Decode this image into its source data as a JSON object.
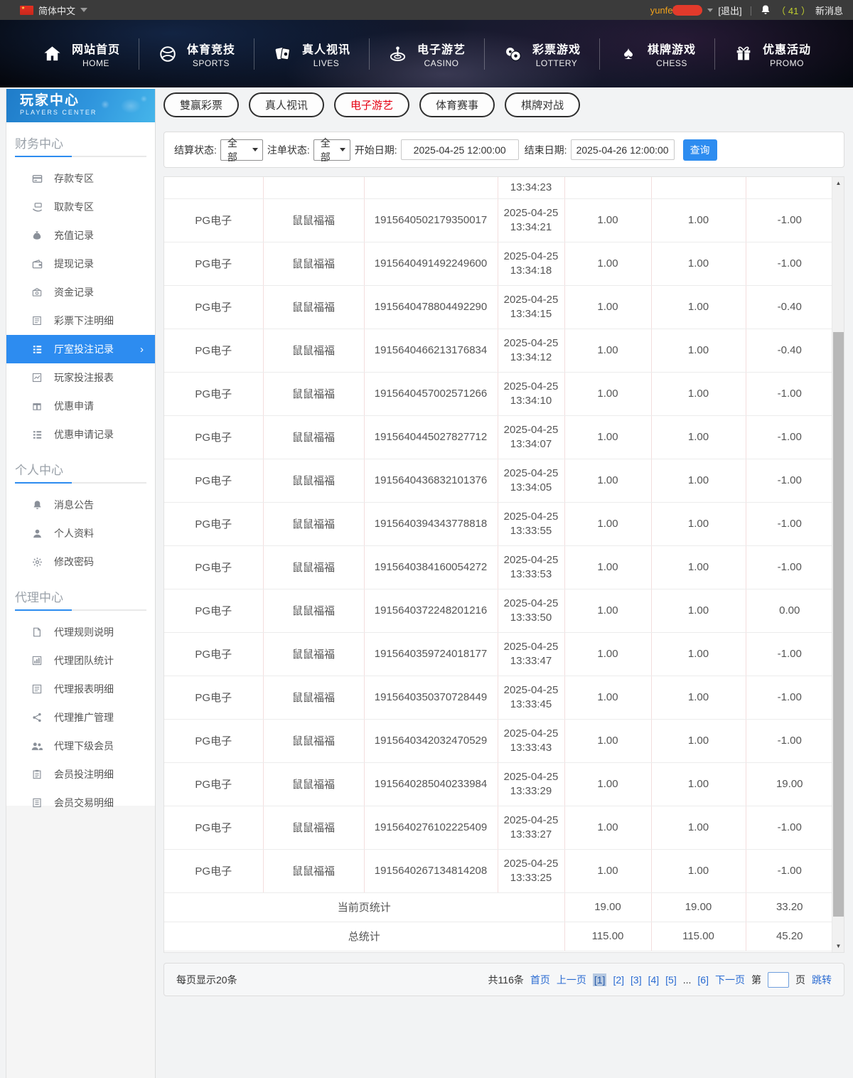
{
  "colors": {
    "accent_blue": "#2d8cf0",
    "active_tab_red": "#e60012",
    "link_blue": "#2a6bd2",
    "username_orange": "#f0a21c",
    "message_count_green": "#c0cf2e",
    "sidebar_header_blue": "#2f95dd"
  },
  "topbar": {
    "language": "简体中文",
    "username": "yunfei",
    "logout": "[退出]",
    "separator": "|",
    "message_count": "（ 41 ）",
    "message_label": "新消息"
  },
  "nav": {
    "items": [
      {
        "zh": "网站首页",
        "en": "HOME",
        "icon": "home-icon"
      },
      {
        "zh": "体育竞技",
        "en": "SPORTS",
        "icon": "sports-ball-icon"
      },
      {
        "zh": "真人视讯",
        "en": "LIVES",
        "icon": "cards-icon"
      },
      {
        "zh": "电子游艺",
        "en": "CASINO",
        "icon": "roulette-icon"
      },
      {
        "zh": "彩票游戏",
        "en": "LOTTERY",
        "icon": "lottery-balls-icon"
      },
      {
        "zh": "棋牌游戏",
        "en": "CHESS",
        "icon": "spade-icon"
      },
      {
        "zh": "优惠活动",
        "en": "PROMO",
        "icon": "gift-icon"
      }
    ]
  },
  "sidebar": {
    "header": {
      "title": "玩家中心",
      "subtitle": "PLAYERS CENTER"
    },
    "sections": [
      {
        "title": "财务中心",
        "items": [
          {
            "label": "存款专区",
            "icon": "deposit-card-icon"
          },
          {
            "label": "取款专区",
            "icon": "withdraw-hand-icon"
          },
          {
            "label": "充值记录",
            "icon": "money-bag-icon"
          },
          {
            "label": "提现记录",
            "icon": "wallet-icon"
          },
          {
            "label": "资金记录",
            "icon": "funds-record-icon"
          },
          {
            "label": "彩票下注明细",
            "icon": "lottery-bets-icon"
          },
          {
            "label": "厅室投注记录",
            "icon": "hall-bets-list-icon",
            "active": true
          },
          {
            "label": "玩家投注报表",
            "icon": "player-report-icon"
          },
          {
            "label": "优惠申请",
            "icon": "promo-apply-icon"
          },
          {
            "label": "优惠申请记录",
            "icon": "promo-record-icon"
          }
        ]
      },
      {
        "title": "个人中心",
        "items": [
          {
            "label": "消息公告",
            "icon": "announcement-bell-icon"
          },
          {
            "label": "个人资料",
            "icon": "profile-person-icon"
          },
          {
            "label": "修改密码",
            "icon": "password-gear-icon"
          }
        ]
      },
      {
        "title": "代理中心",
        "items": [
          {
            "label": "代理规则说明",
            "icon": "agent-rules-doc-icon"
          },
          {
            "label": "代理团队统计",
            "icon": "agent-team-chart-icon"
          },
          {
            "label": "代理报表明细",
            "icon": "agent-report-chart-icon"
          },
          {
            "label": "代理推广管理",
            "icon": "agent-share-icon"
          },
          {
            "label": "代理下级会员",
            "icon": "agent-members-icon"
          },
          {
            "label": "会员投注明细",
            "icon": "member-bets-list-icon"
          },
          {
            "label": "会员交易明细",
            "icon": "member-trades-ledger-icon"
          }
        ]
      }
    ]
  },
  "tabs": [
    {
      "label": "雙赢彩票",
      "active": false
    },
    {
      "label": "真人视讯",
      "active": false
    },
    {
      "label": "电子游艺",
      "active": true
    },
    {
      "label": "体育赛事",
      "active": false
    },
    {
      "label": "棋牌对战",
      "active": false
    }
  ],
  "filters": {
    "settle_label": "结算状态:",
    "settle_value": "全部",
    "order_label": "注单状态:",
    "order_value": "全部",
    "start_label": "开始日期:",
    "start_value": "2025-04-25 12:00:00",
    "end_label": "结束日期:",
    "end_value": "2025-04-26 12:00:00",
    "search_label": "查询"
  },
  "table": {
    "partial_row": {
      "time": "13:34:23"
    },
    "rows": [
      {
        "provider": "PG电子",
        "game": "鼠鼠福福",
        "order": "1915640502179350017",
        "date": "2025-04-25",
        "time": "13:34:21",
        "bet": "1.00",
        "valid": "1.00",
        "profit": "-1.00"
      },
      {
        "provider": "PG电子",
        "game": "鼠鼠福福",
        "order": "1915640491492249600",
        "date": "2025-04-25",
        "time": "13:34:18",
        "bet": "1.00",
        "valid": "1.00",
        "profit": "-1.00"
      },
      {
        "provider": "PG电子",
        "game": "鼠鼠福福",
        "order": "1915640478804492290",
        "date": "2025-04-25",
        "time": "13:34:15",
        "bet": "1.00",
        "valid": "1.00",
        "profit": "-0.40"
      },
      {
        "provider": "PG电子",
        "game": "鼠鼠福福",
        "order": "1915640466213176834",
        "date": "2025-04-25",
        "time": "13:34:12",
        "bet": "1.00",
        "valid": "1.00",
        "profit": "-0.40"
      },
      {
        "provider": "PG电子",
        "game": "鼠鼠福福",
        "order": "1915640457002571266",
        "date": "2025-04-25",
        "time": "13:34:10",
        "bet": "1.00",
        "valid": "1.00",
        "profit": "-1.00"
      },
      {
        "provider": "PG电子",
        "game": "鼠鼠福福",
        "order": "1915640445027827712",
        "date": "2025-04-25",
        "time": "13:34:07",
        "bet": "1.00",
        "valid": "1.00",
        "profit": "-1.00"
      },
      {
        "provider": "PG电子",
        "game": "鼠鼠福福",
        "order": "1915640436832101376",
        "date": "2025-04-25",
        "time": "13:34:05",
        "bet": "1.00",
        "valid": "1.00",
        "profit": "-1.00"
      },
      {
        "provider": "PG电子",
        "game": "鼠鼠福福",
        "order": "1915640394343778818",
        "date": "2025-04-25",
        "time": "13:33:55",
        "bet": "1.00",
        "valid": "1.00",
        "profit": "-1.00"
      },
      {
        "provider": "PG电子",
        "game": "鼠鼠福福",
        "order": "1915640384160054272",
        "date": "2025-04-25",
        "time": "13:33:53",
        "bet": "1.00",
        "valid": "1.00",
        "profit": "-1.00"
      },
      {
        "provider": "PG电子",
        "game": "鼠鼠福福",
        "order": "1915640372248201216",
        "date": "2025-04-25",
        "time": "13:33:50",
        "bet": "1.00",
        "valid": "1.00",
        "profit": "0.00"
      },
      {
        "provider": "PG电子",
        "game": "鼠鼠福福",
        "order": "1915640359724018177",
        "date": "2025-04-25",
        "time": "13:33:47",
        "bet": "1.00",
        "valid": "1.00",
        "profit": "-1.00"
      },
      {
        "provider": "PG电子",
        "game": "鼠鼠福福",
        "order": "1915640350370728449",
        "date": "2025-04-25",
        "time": "13:33:45",
        "bet": "1.00",
        "valid": "1.00",
        "profit": "-1.00"
      },
      {
        "provider": "PG电子",
        "game": "鼠鼠福福",
        "order": "1915640342032470529",
        "date": "2025-04-25",
        "time": "13:33:43",
        "bet": "1.00",
        "valid": "1.00",
        "profit": "-1.00"
      },
      {
        "provider": "PG电子",
        "game": "鼠鼠福福",
        "order": "1915640285040233984",
        "date": "2025-04-25",
        "time": "13:33:29",
        "bet": "1.00",
        "valid": "1.00",
        "profit": "19.00"
      },
      {
        "provider": "PG电子",
        "game": "鼠鼠福福",
        "order": "1915640276102225409",
        "date": "2025-04-25",
        "time": "13:33:27",
        "bet": "1.00",
        "valid": "1.00",
        "profit": "-1.00"
      },
      {
        "provider": "PG电子",
        "game": "鼠鼠福福",
        "order": "1915640267134814208",
        "date": "2025-04-25",
        "time": "13:33:25",
        "bet": "1.00",
        "valid": "1.00",
        "profit": "-1.00"
      }
    ],
    "page_stats": {
      "label": "当前页统计",
      "bet": "19.00",
      "valid": "19.00",
      "profit": "33.20"
    },
    "total_stats": {
      "label": "总统计",
      "bet": "115.00",
      "valid": "115.00",
      "profit": "45.20"
    }
  },
  "pagination": {
    "per_page": "每页显示20条",
    "total": "共116条",
    "first": "首页",
    "prev": "上一页",
    "pages": [
      "1",
      "2",
      "3",
      "4",
      "5"
    ],
    "current": "1",
    "ellipsis": "...",
    "last_page": "6",
    "next": "下一页",
    "jump_prefix": "第",
    "jump_suffix": "页",
    "jump_action": "跳转"
  }
}
